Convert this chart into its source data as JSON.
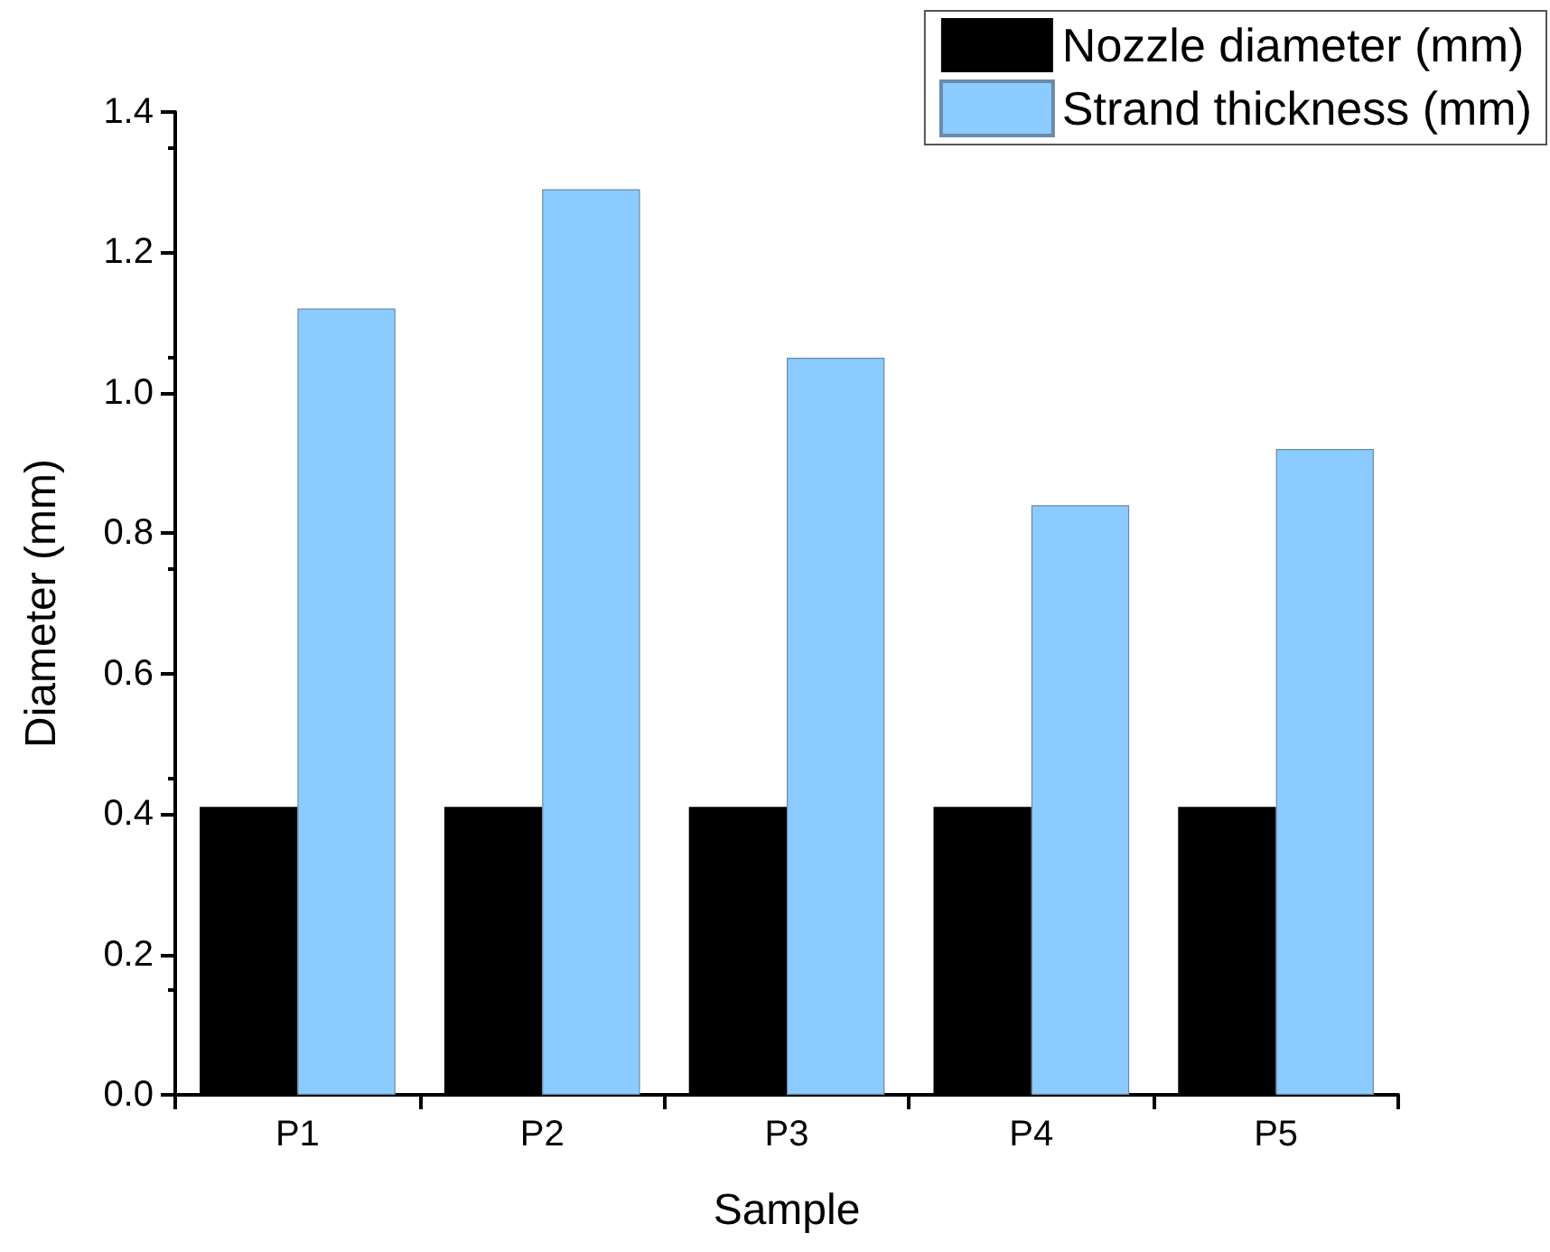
{
  "chart_data": {
    "type": "bar",
    "xlabel": "Sample",
    "ylabel": "Diameter (mm)",
    "categories": [
      "P1",
      "P2",
      "P3",
      "P4",
      "P5"
    ],
    "series": [
      {
        "name": "Nozzle diameter (mm)",
        "color": "#000000",
        "values": [
          0.41,
          0.41,
          0.41,
          0.41,
          0.41
        ]
      },
      {
        "name": "Strand thickness (mm)",
        "color": "#8ccbff",
        "values": [
          1.12,
          1.29,
          1.05,
          0.84,
          0.92
        ]
      }
    ],
    "ylim": [
      0,
      1.4
    ],
    "yticks": [
      {
        "value": 0,
        "label": "0.0"
      },
      0.2,
      0.4,
      0.6,
      0.8,
      {
        "value": 1,
        "label": "1.0"
      },
      1.2,
      1.4
    ],
    "grid": false,
    "legend": "top right"
  }
}
